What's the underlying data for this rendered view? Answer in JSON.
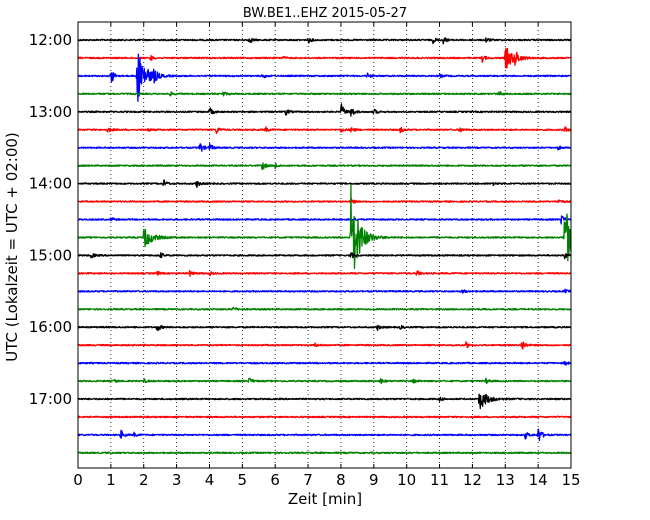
{
  "chart_data": {
    "type": "line",
    "title": "BW.BE1..EHZ 2015-05-27",
    "xlabel": "Zeit  [min]",
    "ylabel": "UTC (Lokalzeit = UTC + 02:00)",
    "xlim": [
      0,
      15
    ],
    "x_ticks": [
      "0",
      "1",
      "2",
      "3",
      "4",
      "5",
      "6",
      "7",
      "8",
      "9",
      "10",
      "11",
      "12",
      "13",
      "14",
      "15"
    ],
    "y_ticks": [
      "12:00",
      "13:00",
      "14:00",
      "15:00",
      "16:00",
      "17:00"
    ],
    "grid": "vertical dotted",
    "colors": [
      "#000000",
      "#ff0000",
      "#0000ff",
      "#008000"
    ],
    "series": [
      {
        "start": "12:00",
        "color": "#000000",
        "events": [
          [
            5.2,
            4
          ],
          [
            7,
            3
          ],
          [
            10.8,
            3
          ],
          [
            11.1,
            4
          ],
          [
            12.4,
            3
          ]
        ]
      },
      {
        "start": "12:15",
        "color": "#ff0000",
        "events": [
          [
            2.2,
            3
          ],
          [
            6.2,
            2
          ],
          [
            12.3,
            4
          ],
          [
            13.0,
            12
          ],
          [
            13.3,
            6
          ]
        ]
      },
      {
        "start": "12:30",
        "color": "#0000ff",
        "events": [
          [
            1.0,
            9
          ],
          [
            1.8,
            28
          ],
          [
            2.3,
            6
          ],
          [
            5.6,
            3
          ],
          [
            8.8,
            3
          ],
          [
            11.0,
            2
          ]
        ]
      },
      {
        "start": "12:45",
        "color": "#008000",
        "events": [
          [
            2.8,
            2
          ],
          [
            4.4,
            3
          ],
          [
            12.8,
            3
          ]
        ]
      },
      {
        "start": "13:00",
        "color": "#000000",
        "events": [
          [
            4.0,
            5
          ],
          [
            6.3,
            4
          ],
          [
            8.0,
            9
          ],
          [
            8.3,
            6
          ],
          [
            9.0,
            3
          ]
        ]
      },
      {
        "start": "13:15",
        "color": "#ff0000",
        "events": [
          [
            0.9,
            3
          ],
          [
            2.1,
            2
          ],
          [
            4.2,
            4
          ],
          [
            5.7,
            3
          ],
          [
            8.0,
            3
          ],
          [
            8.3,
            3
          ],
          [
            9.8,
            3
          ],
          [
            11.6,
            3
          ],
          [
            14.8,
            3
          ]
        ]
      },
      {
        "start": "13:30",
        "color": "#0000ff",
        "events": [
          [
            3.7,
            7
          ],
          [
            4.0,
            4
          ],
          [
            14.6,
            2
          ]
        ]
      },
      {
        "start": "13:45",
        "color": "#008000",
        "events": [
          [
            5.6,
            5
          ],
          [
            6.0,
            3
          ]
        ]
      },
      {
        "start": "14:00",
        "color": "#000000",
        "events": [
          [
            2.6,
            4
          ],
          [
            3.6,
            4
          ],
          [
            12.6,
            2
          ]
        ]
      },
      {
        "start": "14:15",
        "color": "#ff0000",
        "events": [
          [
            8.3,
            3
          ],
          [
            14.6,
            3
          ]
        ]
      },
      {
        "start": "14:30",
        "color": "#0000ff",
        "events": [
          [
            1.0,
            2
          ],
          [
            8.3,
            3
          ],
          [
            14.7,
            5
          ]
        ]
      },
      {
        "start": "14:45",
        "color": "#008000",
        "events": [
          [
            2.0,
            11
          ],
          [
            8.3,
            55
          ],
          [
            14.8,
            37
          ]
        ]
      },
      {
        "start": "15:00",
        "color": "#000000",
        "events": [
          [
            0.4,
            3
          ],
          [
            2.5,
            3
          ],
          [
            8.3,
            4
          ],
          [
            14.8,
            3
          ]
        ]
      },
      {
        "start": "15:15",
        "color": "#ff0000",
        "events": [
          [
            2.4,
            2
          ],
          [
            3.4,
            3
          ],
          [
            4.0,
            2
          ],
          [
            10.3,
            3
          ]
        ]
      },
      {
        "start": "15:30",
        "color": "#0000ff",
        "events": [
          [
            11.7,
            2
          ],
          [
            14.8,
            2
          ]
        ]
      },
      {
        "start": "15:45",
        "color": "#008000",
        "events": [
          [
            4.7,
            3
          ]
        ]
      },
      {
        "start": "16:00",
        "color": "#000000",
        "events": [
          [
            2.4,
            5
          ],
          [
            9.1,
            3
          ],
          [
            9.8,
            2
          ]
        ]
      },
      {
        "start": "16:15",
        "color": "#ff0000",
        "events": [
          [
            7.2,
            2
          ],
          [
            11.8,
            3
          ],
          [
            13.5,
            7
          ]
        ]
      },
      {
        "start": "16:30",
        "color": "#0000ff",
        "events": [
          [
            14.8,
            2
          ]
        ]
      },
      {
        "start": "16:45",
        "color": "#008000",
        "events": [
          [
            1.1,
            2
          ],
          [
            2.0,
            2
          ],
          [
            5.2,
            4
          ],
          [
            9.2,
            3
          ],
          [
            10.2,
            2
          ],
          [
            12.4,
            3
          ]
        ]
      },
      {
        "start": "17:00",
        "color": "#000000",
        "events": [
          [
            11.0,
            2
          ],
          [
            12.2,
            11
          ]
        ]
      },
      {
        "start": "17:15",
        "color": "#ff0000",
        "events": []
      },
      {
        "start": "17:30",
        "color": "#0000ff",
        "events": [
          [
            1.3,
            5
          ],
          [
            1.7,
            2
          ],
          [
            13.6,
            4
          ],
          [
            14.0,
            10
          ]
        ]
      },
      {
        "start": "17:45",
        "color": "#008000",
        "events": []
      }
    ]
  }
}
